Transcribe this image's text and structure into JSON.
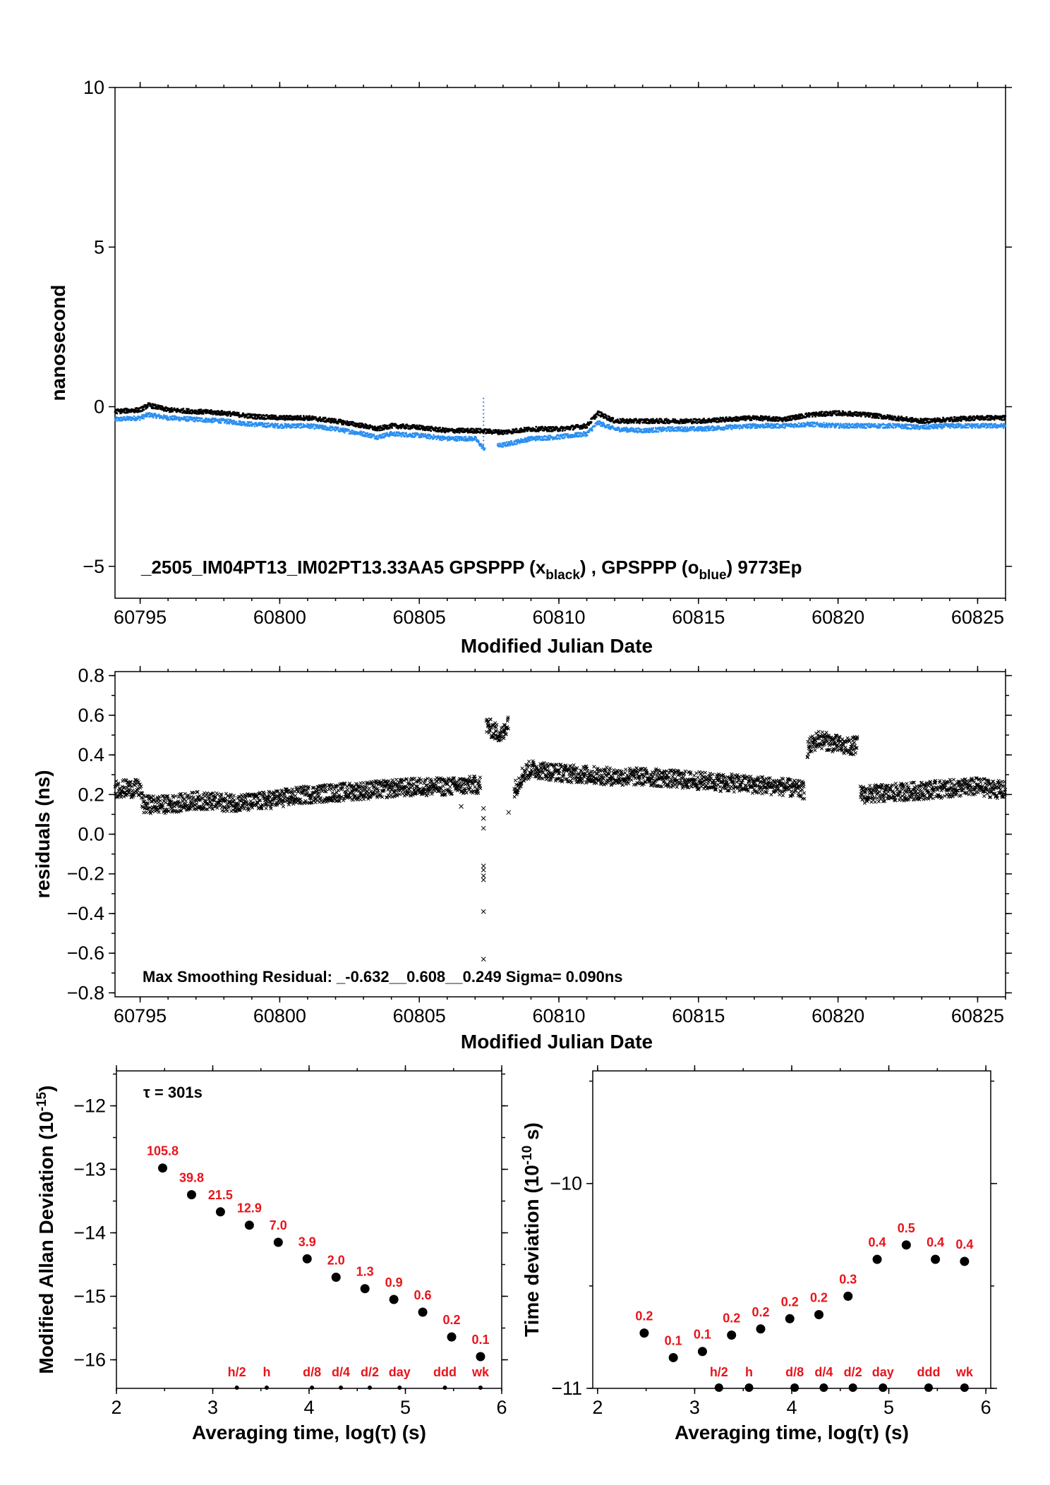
{
  "chart_data": [
    {
      "type": "scatter",
      "title": "",
      "xlabel": "Modified Julian Date",
      "ylabel": "nanosecond",
      "annotation": {
        "prefix": "_2505_IM04PT13_IM02PT13.33AA5     GPSPPP (x",
        "sub1": "black",
        "mid": ") ,  GPSPPP (o",
        "sub2": "blue",
        "suffix": ")  9773Ep"
      },
      "xlim": [
        60794.1,
        60826.0
      ],
      "ylim": [
        -6.0,
        10.0
      ],
      "xticks": [
        "60795",
        "60800",
        "60805",
        "60810",
        "60815",
        "60820",
        "60825"
      ],
      "xtick_values": [
        60795,
        60800,
        60805,
        60810,
        60815,
        60820,
        60825
      ],
      "yticks": [
        "10",
        "5",
        "0",
        "−5"
      ],
      "ytick_values": [
        10,
        5,
        0,
        -5
      ],
      "grid": false,
      "series": [
        {
          "marker": "x",
          "color": "#000000",
          "x": [
            60794.1,
            60795.0,
            60795.3,
            60796.0,
            60797.0,
            60798.0,
            60799.0,
            60800.0,
            60801.0,
            60802.0,
            60803.0,
            60803.5,
            60804.0,
            60805.0,
            60806.0,
            60807.0,
            60808.0,
            60809.0,
            60810.0,
            60811.0,
            60811.4,
            60812.0,
            60813.0,
            60814.0,
            60815.0,
            60816.0,
            60817.0,
            60818.0,
            60819.0,
            60820.0,
            60821.0,
            60822.0,
            60823.0,
            60824.0,
            60825.0,
            60826.0
          ],
          "y": [
            -0.15,
            -0.1,
            0.05,
            -0.1,
            -0.15,
            -0.2,
            -0.3,
            -0.35,
            -0.35,
            -0.45,
            -0.6,
            -0.7,
            -0.6,
            -0.65,
            -0.75,
            -0.75,
            -0.8,
            -0.7,
            -0.7,
            -0.6,
            -0.2,
            -0.45,
            -0.45,
            -0.45,
            -0.45,
            -0.4,
            -0.35,
            -0.4,
            -0.25,
            -0.2,
            -0.25,
            -0.35,
            -0.45,
            -0.4,
            -0.35,
            -0.35
          ]
        },
        {
          "marker": "o",
          "color": "#2b8ff0",
          "x": [
            60794.1,
            60795.0,
            60795.3,
            60796.0,
            60797.0,
            60798.0,
            60799.0,
            60800.0,
            60801.0,
            60802.0,
            60803.0,
            60803.5,
            60804.0,
            60805.0,
            60806.0,
            60807.0,
            60807.3,
            60808.0,
            60809.0,
            60810.0,
            60811.0,
            60811.4,
            60812.0,
            60813.0,
            60814.0,
            60815.0,
            60816.0,
            60817.0,
            60818.0,
            60819.0,
            60820.0,
            60821.0,
            60822.0,
            60823.0,
            60824.0,
            60825.0,
            60826.0
          ],
          "y": [
            -0.4,
            -0.35,
            -0.25,
            -0.35,
            -0.4,
            -0.45,
            -0.55,
            -0.6,
            -0.6,
            -0.7,
            -0.85,
            -0.95,
            -0.85,
            -0.9,
            -1.0,
            -1.0,
            -1.3,
            -1.2,
            -1.0,
            -0.95,
            -0.85,
            -0.5,
            -0.7,
            -0.75,
            -0.7,
            -0.7,
            -0.65,
            -0.6,
            -0.6,
            -0.55,
            -0.6,
            -0.6,
            -0.6,
            -0.65,
            -0.6,
            -0.6,
            -0.6
          ]
        }
      ]
    },
    {
      "type": "scatter",
      "title": "",
      "xlabel": "Modified Julian Date",
      "ylabel": "residuals (ns)",
      "annotation": "Max Smoothing Residual: _-0.632__0.608__0.249  Sigma= 0.090ns",
      "xlim": [
        60794.1,
        60826.0
      ],
      "ylim": [
        -0.82,
        0.82
      ],
      "xticks": [
        "60795",
        "60800",
        "60805",
        "60810",
        "60815",
        "60820",
        "60825"
      ],
      "xtick_values": [
        60795,
        60800,
        60805,
        60810,
        60815,
        60820,
        60825
      ],
      "yticks": [
        "0.8",
        "0.6",
        "0.4",
        "0.2",
        "0.0",
        "−0.2",
        "−0.4",
        "−0.6",
        "−0.8"
      ],
      "ytick_values": [
        0.8,
        0.6,
        0.4,
        0.2,
        0.0,
        -0.2,
        -0.4,
        -0.6,
        -0.8
      ],
      "grid": false,
      "series": [
        {
          "marker": "x",
          "color": "#000000",
          "segments": [
            {
              "x": [
                60794.1,
                60795.0,
                60795.1,
                60796.0,
                60797.0,
                60798.0,
                60799.0,
                60800.0,
                60801.0,
                60802.0,
                60803.0,
                60804.0,
                60805.0,
                60806.0,
                60807.2
              ],
              "y": [
                0.23,
                0.23,
                0.15,
                0.15,
                0.17,
                0.16,
                0.16,
                0.18,
                0.2,
                0.21,
                0.22,
                0.23,
                0.24,
                0.24,
                0.25
              ]
            },
            {
              "x": [
                60807.4,
                60807.7,
                60808.0,
                60808.2
              ],
              "y": [
                0.55,
                0.52,
                0.5,
                0.58
              ]
            },
            {
              "x": [
                60808.4,
                60808.7,
                60809.0,
                60810.0,
                60811.0,
                60812.0,
                60813.0,
                60814.0,
                60815.0,
                60816.0,
                60817.0,
                60818.0,
                60818.8
              ],
              "y": [
                0.22,
                0.3,
                0.33,
                0.31,
                0.3,
                0.29,
                0.29,
                0.28,
                0.27,
                0.26,
                0.25,
                0.24,
                0.22
              ]
            },
            {
              "x": [
                60818.9,
                60819.3,
                60819.8,
                60820.3,
                60820.7
              ],
              "y": [
                0.43,
                0.48,
                0.46,
                0.44,
                0.45
              ]
            },
            {
              "x": [
                60820.8,
                60821.0,
                60822.0,
                60823.0,
                60824.0,
                60825.0,
                60826.0
              ],
              "y": [
                0.2,
                0.2,
                0.21,
                0.22,
                0.23,
                0.24,
                0.22
              ]
            }
          ],
          "outliers": {
            "x": [
              60807.3,
              60807.3,
              60807.3,
              60807.3,
              60807.3,
              60807.3,
              60807.3,
              60807.3,
              60807.3,
              60806.5,
              60808.2
            ],
            "y": [
              0.13,
              0.08,
              0.03,
              -0.16,
              -0.18,
              -0.21,
              -0.23,
              -0.39,
              -0.63,
              0.14,
              0.11
            ]
          }
        }
      ]
    },
    {
      "type": "scatter",
      "title": "",
      "xlabel": "Averaging time, log(τ) (s)",
      "ylabel_main": "Modified Allan Deviation (10",
      "ylabel_sup": "-15",
      "ylabel_end": ")",
      "annotation": "τ = 301s",
      "xlim": [
        2,
        6
      ],
      "ylim": [
        -16.45,
        -11.45
      ],
      "xticks": [
        "2",
        "3",
        "4",
        "5",
        "6"
      ],
      "xtick_values": [
        2,
        3,
        4,
        5,
        6
      ],
      "yticks": [
        "−12",
        "−13",
        "−14",
        "−15",
        "−16"
      ],
      "ytick_values": [
        -12,
        -13,
        -14,
        -15,
        -16
      ],
      "grid": false,
      "x": [
        2.48,
        2.78,
        3.08,
        3.38,
        3.68,
        3.98,
        4.28,
        4.58,
        4.88,
        5.18,
        5.48,
        5.78
      ],
      "y": [
        -12.98,
        -13.4,
        -13.67,
        -13.88,
        -14.15,
        -14.41,
        -14.7,
        -14.88,
        -15.05,
        -15.25,
        -15.64,
        -15.95
      ],
      "point_labels": [
        "105.8",
        "39.8",
        "21.5",
        "12.9",
        "7.0",
        "3.9",
        "2.0",
        "1.3",
        "0.9",
        "0.6",
        "0.2",
        "0.1"
      ],
      "reference_marks": {
        "x": [
          3.25,
          3.56,
          4.03,
          4.33,
          4.63,
          4.94,
          5.41,
          5.78
        ],
        "labels": [
          "h/2",
          "h",
          "d/8",
          "d/4",
          "d/2",
          "day",
          "ddd",
          "wk"
        ]
      }
    },
    {
      "type": "scatter",
      "title": "",
      "xlabel": "Averaging time, log(τ) (s)",
      "ylabel_main": "Time deviation (10",
      "ylabel_sup": "-10",
      "ylabel_end": " s)",
      "xlim": [
        1.95,
        6.05
      ],
      "ylim": [
        -11.0,
        -9.45
      ],
      "xticks": [
        "2",
        "3",
        "4",
        "5",
        "6"
      ],
      "xtick_values": [
        2,
        3,
        4,
        5,
        6
      ],
      "yticks": [
        "−10",
        "−11"
      ],
      "ytick_values": [
        -10,
        -11
      ],
      "grid": false,
      "x": [
        2.48,
        2.78,
        3.08,
        3.38,
        3.68,
        3.98,
        4.28,
        4.58,
        4.88,
        5.18,
        5.48,
        5.78
      ],
      "y": [
        -10.73,
        -10.85,
        -10.82,
        -10.74,
        -10.71,
        -10.66,
        -10.64,
        -10.55,
        -10.37,
        -10.3,
        -10.37,
        -10.38
      ],
      "point_labels": [
        "0.2",
        "0.1",
        "0.1",
        "0.2",
        "0.2",
        "0.2",
        "0.2",
        "0.3",
        "0.4",
        "0.5",
        "0.4",
        "0.4"
      ],
      "reference_marks": {
        "x": [
          3.25,
          3.56,
          4.03,
          4.33,
          4.63,
          4.94,
          5.41,
          5.78
        ],
        "labels": [
          "h/2",
          "h",
          "d/8",
          "d/4",
          "d/2",
          "day",
          "ddd",
          "wk"
        ]
      }
    }
  ]
}
